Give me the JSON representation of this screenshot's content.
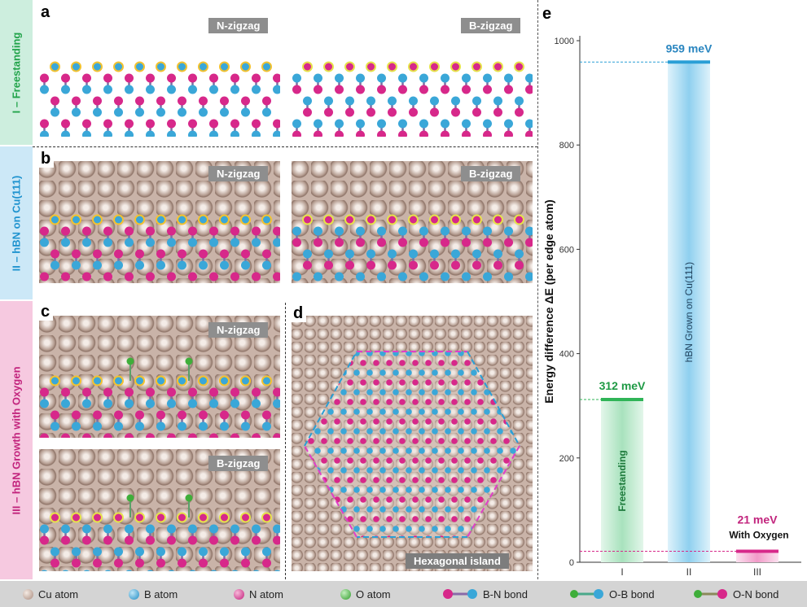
{
  "rows": {
    "row1": "I – Freestanding",
    "row2": "II – hBN on Cu(111)",
    "row3": "III – hBN Growth with Oxygen"
  },
  "panels": {
    "a": "a",
    "b": "b",
    "c": "c",
    "d": "d",
    "e": "e"
  },
  "tags": {
    "n_zigzag": "N-zigzag",
    "b_zigzag": "B-zigzag",
    "hex_island": "Hexagonal island"
  },
  "colors": {
    "row1_bg": "#cdeede",
    "row2_bg": "#cce8f7",
    "row3_bg": "#f6c9e0",
    "b_atom": "#3aa7d8",
    "n_atom": "#d7288a",
    "o_atom": "#3fae3a",
    "freestanding": "#2fb457",
    "cu": "#2a9fd6",
    "oxygen": "#d7288a"
  },
  "chart_data": {
    "type": "bar",
    "categories": [
      "I",
      "II",
      "III"
    ],
    "values": [
      312,
      959,
      21
    ],
    "ylabel": "Energy difference ΔE  (per edge atom)",
    "yticks": [
      0,
      200,
      400,
      600,
      800,
      1000
    ],
    "ylim": [
      0,
      1000
    ],
    "value_labels": [
      "312 meV",
      "959 meV",
      "21 meV"
    ],
    "bar_labels": [
      "Freestanding",
      "hBN Grown on Cu(111)",
      ""
    ],
    "extra_label": "With Oxygen"
  },
  "legend": {
    "cu_atom": "Cu atom",
    "b_atom": "B atom",
    "n_atom": "N atom",
    "o_atom": "O atom",
    "bn_bond": "B-N bond",
    "ob_bond": "O-B bond",
    "on_bond": "O-N bond"
  }
}
